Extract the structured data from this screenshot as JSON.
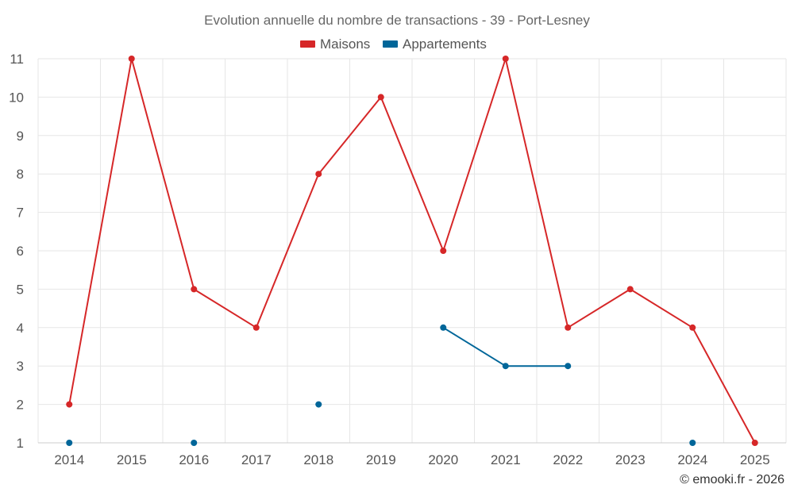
{
  "chart_data": {
    "type": "line",
    "title": "Evolution annuelle du nombre de transactions - 39 - Port-Lesney",
    "categories": [
      "2014",
      "2015",
      "2016",
      "2017",
      "2018",
      "2019",
      "2020",
      "2021",
      "2022",
      "2023",
      "2024",
      "2025"
    ],
    "ylim": [
      1,
      11
    ],
    "yticks": [
      1,
      2,
      3,
      4,
      5,
      6,
      7,
      8,
      9,
      10,
      11
    ],
    "series": [
      {
        "name": "Maisons",
        "color": "#d62728",
        "values": [
          2,
          11,
          5,
          4,
          8,
          10,
          6,
          11,
          4,
          5,
          4,
          1
        ]
      },
      {
        "name": "Appartements",
        "color": "#006699",
        "values": [
          1,
          null,
          1,
          null,
          2,
          null,
          4,
          3,
          3,
          null,
          1,
          null
        ]
      }
    ],
    "legend": "top-center",
    "grid": true
  },
  "credit": "© emooki.fr - 2026"
}
